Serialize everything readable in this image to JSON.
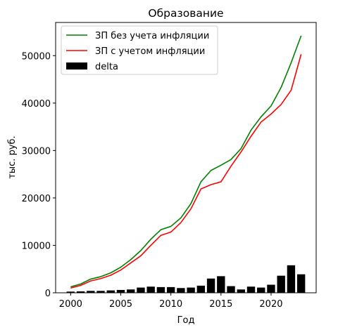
{
  "chart_data": {
    "type": "line+bar",
    "title": "Образование",
    "xlabel": "Год",
    "ylabel": "тыс. руб.",
    "xlim": [
      1998.5,
      2024.5
    ],
    "ylim": [
      0,
      57000
    ],
    "x_ticks": [
      2000,
      2005,
      2010,
      2015,
      2020
    ],
    "y_ticks": [
      0,
      10000,
      20000,
      30000,
      40000,
      50000
    ],
    "grid": false,
    "legend_position": "top-left",
    "x": [
      2000,
      2001,
      2002,
      2003,
      2004,
      2005,
      2006,
      2007,
      2008,
      2009,
      2010,
      2011,
      2012,
      2013,
      2014,
      2015,
      2016,
      2017,
      2018,
      2019,
      2020,
      2021,
      2022,
      2023
    ],
    "series": [
      {
        "name": "ЗП без учета инфляции",
        "kind": "line",
        "color": "#008000",
        "values": [
          1250,
          1850,
          2900,
          3400,
          4200,
          5400,
          7000,
          8900,
          11300,
          13300,
          14000,
          15800,
          18800,
          23400,
          25800,
          26900,
          28100,
          30400,
          34300,
          37100,
          39400,
          43300,
          48500,
          54200
        ]
      },
      {
        "name": "ЗП с учетом инфляции",
        "kind": "line",
        "color": "#ff0000",
        "values": [
          1000,
          1550,
          2500,
          3000,
          3700,
          4800,
          6300,
          7800,
          10000,
          12100,
          12800,
          14800,
          17700,
          21900,
          22800,
          23400,
          26700,
          29700,
          33000,
          36000,
          37700,
          39700,
          42700,
          50300
        ]
      },
      {
        "name": "delta",
        "kind": "bar",
        "color": "#000000",
        "values": [
          250,
          300,
          400,
          400,
          500,
          600,
          700,
          1100,
          1300,
          1200,
          1200,
          1000,
          1100,
          1500,
          3000,
          3500,
          1400,
          700,
          1300,
          1100,
          1700,
          3600,
          5800,
          3900
        ]
      }
    ]
  }
}
